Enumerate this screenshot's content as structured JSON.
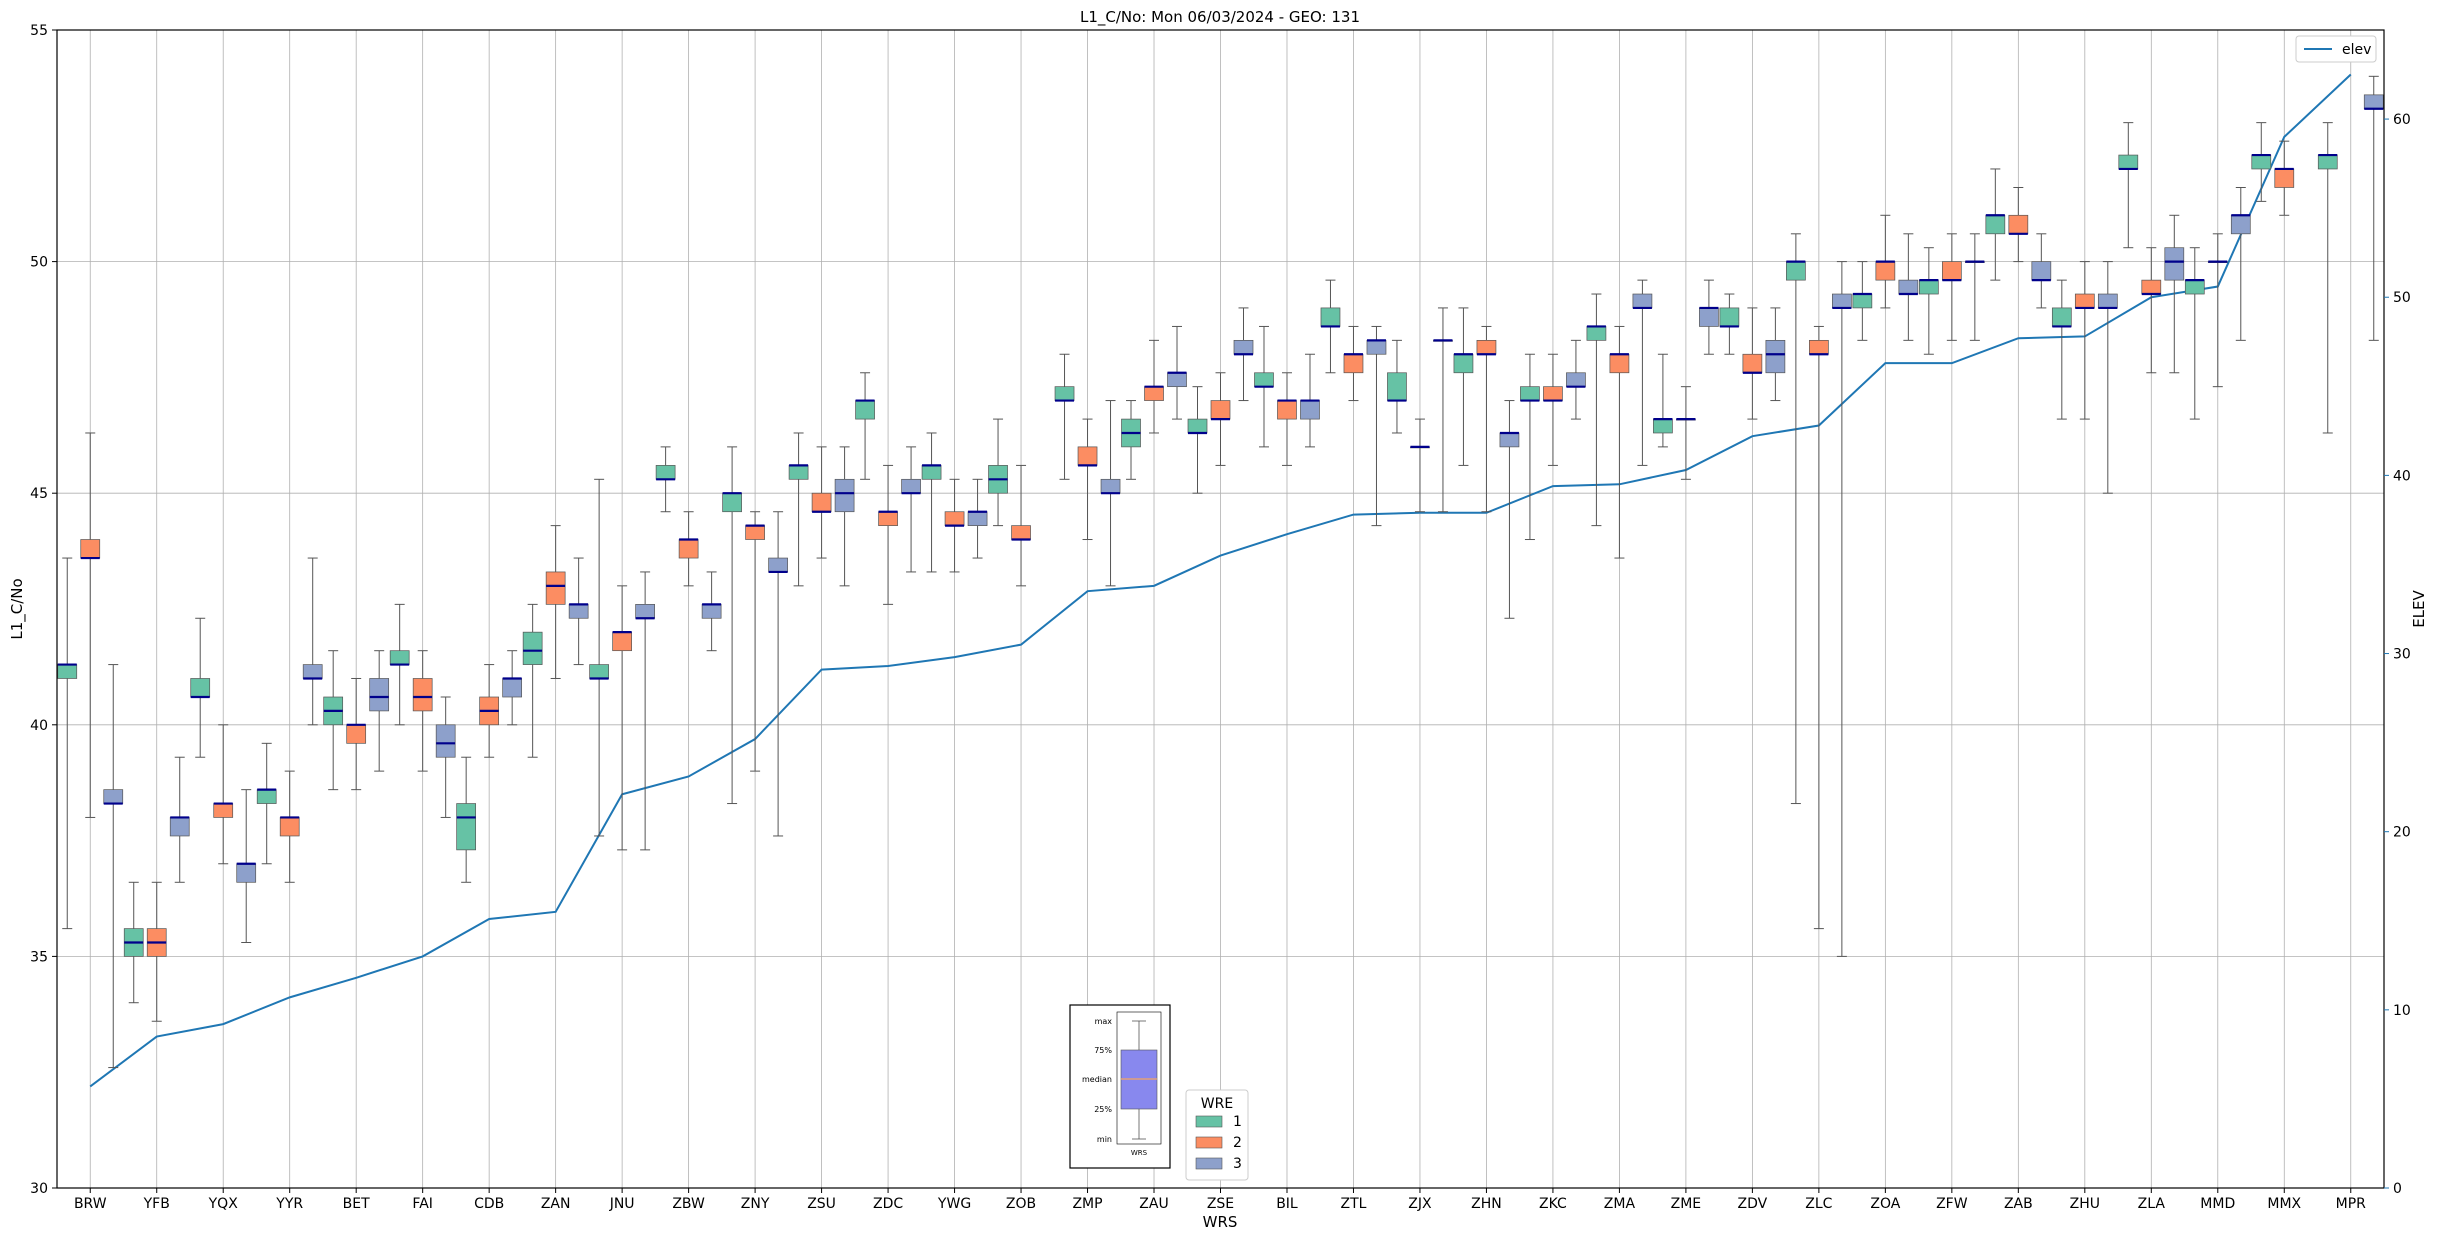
{
  "chart_data": {
    "type": "box",
    "title": "L1_C/No: Mon 06/03/2024 - GEO: 131",
    "xlabel": "WRS",
    "ylabel": "L1_C/No",
    "y2label": "ELEV",
    "ylim": [
      30,
      55
    ],
    "y2lim": [
      0,
      65
    ],
    "yticks": [
      30,
      35,
      40,
      45,
      50,
      55
    ],
    "y2ticks": [
      0,
      10,
      20,
      30,
      40,
      50,
      60
    ],
    "grid": true,
    "colors": {
      "1": "#66c2a5",
      "2": "#fc8d62",
      "3": "#8da0cb",
      "median": "#00008b",
      "elev": "#1f77b4",
      "whisker": "#555555"
    },
    "categories": [
      "BRW",
      "YFB",
      "YQX",
      "YYR",
      "BET",
      "FAI",
      "CDB",
      "ZAN",
      "JNU",
      "ZBW",
      "ZNY",
      "ZSU",
      "ZDC",
      "YWG",
      "ZOB",
      "ZMP",
      "ZAU",
      "ZSE",
      "BIL",
      "ZTL",
      "ZJX",
      "ZHN",
      "ZKC",
      "ZMA",
      "ZME",
      "ZDV",
      "ZLC",
      "ZOA",
      "ZFW",
      "ZAB",
      "ZHU",
      "ZLA",
      "MMD",
      "MMX",
      "MPR"
    ],
    "boxes": [
      {
        "cat": "BRW",
        "wre": "1",
        "min": 35.6,
        "q1": 41.0,
        "median": 41.3,
        "q3": 41.3,
        "max": 43.6
      },
      {
        "cat": "BRW",
        "wre": "2",
        "min": 38.0,
        "q1": 43.6,
        "median": 43.6,
        "q3": 44.0,
        "max": 46.3
      },
      {
        "cat": "BRW",
        "wre": "3",
        "min": 32.6,
        "q1": 38.3,
        "median": 38.3,
        "q3": 38.6,
        "max": 41.3
      },
      {
        "cat": "YFB",
        "wre": "1",
        "min": 34.0,
        "q1": 35.0,
        "median": 35.3,
        "q3": 35.6,
        "max": 36.6
      },
      {
        "cat": "YFB",
        "wre": "2",
        "min": 33.6,
        "q1": 35.0,
        "median": 35.3,
        "q3": 35.6,
        "max": 36.6
      },
      {
        "cat": "YFB",
        "wre": "3",
        "min": 36.6,
        "q1": 37.6,
        "median": 38.0,
        "q3": 38.0,
        "max": 39.3
      },
      {
        "cat": "YQX",
        "wre": "1",
        "min": 39.3,
        "q1": 40.6,
        "median": 40.6,
        "q3": 41.0,
        "max": 42.3
      },
      {
        "cat": "YQX",
        "wre": "2",
        "min": 37.0,
        "q1": 38.0,
        "median": 38.3,
        "q3": 38.3,
        "max": 40.0
      },
      {
        "cat": "YQX",
        "wre": "3",
        "min": 35.3,
        "q1": 36.6,
        "median": 37.0,
        "q3": 37.0,
        "max": 38.6
      },
      {
        "cat": "YYR",
        "wre": "1",
        "min": 37.0,
        "q1": 38.3,
        "median": 38.6,
        "q3": 38.6,
        "max": 39.6
      },
      {
        "cat": "YYR",
        "wre": "2",
        "min": 36.6,
        "q1": 37.6,
        "median": 38.0,
        "q3": 38.0,
        "max": 39.0
      },
      {
        "cat": "YYR",
        "wre": "3",
        "min": 40.0,
        "q1": 41.0,
        "median": 41.0,
        "q3": 41.3,
        "max": 43.6
      },
      {
        "cat": "BET",
        "wre": "1",
        "min": 38.6,
        "q1": 40.0,
        "median": 40.3,
        "q3": 40.6,
        "max": 41.6
      },
      {
        "cat": "BET",
        "wre": "2",
        "min": 38.6,
        "q1": 39.6,
        "median": 40.0,
        "q3": 40.0,
        "max": 41.0
      },
      {
        "cat": "BET",
        "wre": "3",
        "min": 39.0,
        "q1": 40.3,
        "median": 40.6,
        "q3": 41.0,
        "max": 41.6
      },
      {
        "cat": "FAI",
        "wre": "1",
        "min": 40.0,
        "q1": 41.3,
        "median": 41.3,
        "q3": 41.6,
        "max": 42.6
      },
      {
        "cat": "FAI",
        "wre": "2",
        "min": 39.0,
        "q1": 40.3,
        "median": 40.6,
        "q3": 41.0,
        "max": 41.6
      },
      {
        "cat": "FAI",
        "wre": "3",
        "min": 38.0,
        "q1": 39.3,
        "median": 39.6,
        "q3": 40.0,
        "max": 40.6
      },
      {
        "cat": "CDB",
        "wre": "1",
        "min": 36.6,
        "q1": 37.3,
        "median": 38.0,
        "q3": 38.3,
        "max": 39.3
      },
      {
        "cat": "CDB",
        "wre": "2",
        "min": 39.3,
        "q1": 40.0,
        "median": 40.3,
        "q3": 40.6,
        "max": 41.3
      },
      {
        "cat": "CDB",
        "wre": "3",
        "min": 40.0,
        "q1": 40.6,
        "median": 41.0,
        "q3": 41.0,
        "max": 41.6
      },
      {
        "cat": "ZAN",
        "wre": "1",
        "min": 39.3,
        "q1": 41.3,
        "median": 41.6,
        "q3": 42.0,
        "max": 42.6
      },
      {
        "cat": "ZAN",
        "wre": "2",
        "min": 41.0,
        "q1": 42.6,
        "median": 43.0,
        "q3": 43.3,
        "max": 44.3
      },
      {
        "cat": "ZAN",
        "wre": "3",
        "min": 41.3,
        "q1": 42.3,
        "median": 42.6,
        "q3": 42.6,
        "max": 43.6
      },
      {
        "cat": "JNU",
        "wre": "1",
        "min": 37.6,
        "q1": 41.0,
        "median": 41.0,
        "q3": 41.3,
        "max": 45.3
      },
      {
        "cat": "JNU",
        "wre": "2",
        "min": 37.3,
        "q1": 41.6,
        "median": 42.0,
        "q3": 42.0,
        "max": 43.0
      },
      {
        "cat": "JNU",
        "wre": "3",
        "min": 37.3,
        "q1": 42.3,
        "median": 42.3,
        "q3": 42.6,
        "max": 43.3
      },
      {
        "cat": "ZBW",
        "wre": "1",
        "min": 44.6,
        "q1": 45.3,
        "median": 45.3,
        "q3": 45.6,
        "max": 46.0
      },
      {
        "cat": "ZBW",
        "wre": "2",
        "min": 43.0,
        "q1": 43.6,
        "median": 44.0,
        "q3": 44.0,
        "max": 44.6
      },
      {
        "cat": "ZBW",
        "wre": "3",
        "min": 41.6,
        "q1": 42.3,
        "median": 42.6,
        "q3": 42.6,
        "max": 43.3
      },
      {
        "cat": "ZNY",
        "wre": "1",
        "min": 38.3,
        "q1": 44.6,
        "median": 45.0,
        "q3": 45.0,
        "max": 46.0
      },
      {
        "cat": "ZNY",
        "wre": "2",
        "min": 39.0,
        "q1": 44.0,
        "median": 44.3,
        "q3": 44.3,
        "max": 44.6
      },
      {
        "cat": "ZNY",
        "wre": "3",
        "min": 37.6,
        "q1": 43.3,
        "median": 43.3,
        "q3": 43.6,
        "max": 44.6
      },
      {
        "cat": "ZSU",
        "wre": "1",
        "min": 43.0,
        "q1": 45.3,
        "median": 45.6,
        "q3": 45.6,
        "max": 46.3
      },
      {
        "cat": "ZSU",
        "wre": "2",
        "min": 43.6,
        "q1": 44.6,
        "median": 44.6,
        "q3": 45.0,
        "max": 46.0
      },
      {
        "cat": "ZSU",
        "wre": "3",
        "min": 43.0,
        "q1": 44.6,
        "median": 45.0,
        "q3": 45.3,
        "max": 46.0
      },
      {
        "cat": "ZDC",
        "wre": "1",
        "min": 45.3,
        "q1": 46.6,
        "median": 47.0,
        "q3": 47.0,
        "max": 47.6
      },
      {
        "cat": "ZDC",
        "wre": "2",
        "min": 42.6,
        "q1": 44.3,
        "median": 44.6,
        "q3": 44.6,
        "max": 45.6
      },
      {
        "cat": "ZDC",
        "wre": "3",
        "min": 43.3,
        "q1": 45.0,
        "median": 45.0,
        "q3": 45.3,
        "max": 46.0
      },
      {
        "cat": "YWG",
        "wre": "1",
        "min": 43.3,
        "q1": 45.3,
        "median": 45.6,
        "q3": 45.6,
        "max": 46.3
      },
      {
        "cat": "YWG",
        "wre": "2",
        "min": 43.3,
        "q1": 44.3,
        "median": 44.3,
        "q3": 44.6,
        "max": 45.3
      },
      {
        "cat": "YWG",
        "wre": "3",
        "min": 43.6,
        "q1": 44.3,
        "median": 44.6,
        "q3": 44.6,
        "max": 45.3
      },
      {
        "cat": "ZOB",
        "wre": "1",
        "min": 44.3,
        "q1": 45.0,
        "median": 45.3,
        "q3": 45.6,
        "max": 46.6
      },
      {
        "cat": "ZOB",
        "wre": "2",
        "min": 43.0,
        "q1": 44.0,
        "median": 44.0,
        "q3": 44.3,
        "max": 45.6
      },
      {
        "cat": "ZMP",
        "wre": "1",
        "min": 45.3,
        "q1": 47.0,
        "median": 47.0,
        "q3": 47.3,
        "max": 48.0
      },
      {
        "cat": "ZMP",
        "wre": "2",
        "min": 44.0,
        "q1": 45.6,
        "median": 45.6,
        "q3": 46.0,
        "max": 46.6
      },
      {
        "cat": "ZMP",
        "wre": "3",
        "min": 43.0,
        "q1": 45.0,
        "median": 45.0,
        "q3": 45.3,
        "max": 47.0
      },
      {
        "cat": "ZAU",
        "wre": "1",
        "min": 45.3,
        "q1": 46.0,
        "median": 46.3,
        "q3": 46.6,
        "max": 47.0
      },
      {
        "cat": "ZAU",
        "wre": "2",
        "min": 46.3,
        "q1": 47.0,
        "median": 47.3,
        "q3": 47.3,
        "max": 48.3
      },
      {
        "cat": "ZAU",
        "wre": "3",
        "min": 46.6,
        "q1": 47.3,
        "median": 47.6,
        "q3": 47.6,
        "max": 48.6
      },
      {
        "cat": "ZSE",
        "wre": "1",
        "min": 45.0,
        "q1": 46.3,
        "median": 46.3,
        "q3": 46.6,
        "max": 47.3
      },
      {
        "cat": "ZSE",
        "wre": "2",
        "min": 45.6,
        "q1": 46.6,
        "median": 46.6,
        "q3": 47.0,
        "max": 47.6
      },
      {
        "cat": "ZSE",
        "wre": "3",
        "min": 47.0,
        "q1": 48.0,
        "median": 48.0,
        "q3": 48.3,
        "max": 49.0
      },
      {
        "cat": "BIL",
        "wre": "1",
        "min": 46.0,
        "q1": 47.3,
        "median": 47.3,
        "q3": 47.6,
        "max": 48.6
      },
      {
        "cat": "BIL",
        "wre": "2",
        "min": 45.6,
        "q1": 46.6,
        "median": 47.0,
        "q3": 47.0,
        "max": 47.6
      },
      {
        "cat": "BIL",
        "wre": "3",
        "min": 46.0,
        "q1": 46.6,
        "median": 47.0,
        "q3": 47.0,
        "max": 48.0
      },
      {
        "cat": "ZTL",
        "wre": "1",
        "min": 47.6,
        "q1": 48.6,
        "median": 48.6,
        "q3": 49.0,
        "max": 49.6
      },
      {
        "cat": "ZTL",
        "wre": "2",
        "min": 47.0,
        "q1": 47.6,
        "median": 48.0,
        "q3": 48.0,
        "max": 48.6
      },
      {
        "cat": "ZTL",
        "wre": "3",
        "min": 44.3,
        "q1": 48.0,
        "median": 48.3,
        "q3": 48.3,
        "max": 48.6
      },
      {
        "cat": "ZJX",
        "wre": "1",
        "min": 46.3,
        "q1": 47.0,
        "median": 47.0,
        "q3": 47.6,
        "max": 48.3
      },
      {
        "cat": "ZJX",
        "wre": "2",
        "min": 44.6,
        "q1": 46.0,
        "median": 46.0,
        "q3": 46.0,
        "max": 46.6
      },
      {
        "cat": "ZJX",
        "wre": "3",
        "min": 44.6,
        "q1": 48.3,
        "median": 48.3,
        "q3": 48.3,
        "max": 49.0
      },
      {
        "cat": "ZHN",
        "wre": "1",
        "min": 45.6,
        "q1": 47.6,
        "median": 48.0,
        "q3": 48.0,
        "max": 49.0
      },
      {
        "cat": "ZHN",
        "wre": "2",
        "min": 44.6,
        "q1": 48.0,
        "median": 48.0,
        "q3": 48.3,
        "max": 48.6
      },
      {
        "cat": "ZHN",
        "wre": "3",
        "min": 42.3,
        "q1": 46.0,
        "median": 46.3,
        "q3": 46.3,
        "max": 47.0
      },
      {
        "cat": "ZKC",
        "wre": "1",
        "min": 44.0,
        "q1": 47.0,
        "median": 47.0,
        "q3": 47.3,
        "max": 48.0
      },
      {
        "cat": "ZKC",
        "wre": "2",
        "min": 45.6,
        "q1": 47.0,
        "median": 47.0,
        "q3": 47.3,
        "max": 48.0
      },
      {
        "cat": "ZKC",
        "wre": "3",
        "min": 46.6,
        "q1": 47.3,
        "median": 47.3,
        "q3": 47.6,
        "max": 48.3
      },
      {
        "cat": "ZMA",
        "wre": "1",
        "min": 44.3,
        "q1": 48.3,
        "median": 48.6,
        "q3": 48.6,
        "max": 49.3
      },
      {
        "cat": "ZMA",
        "wre": "2",
        "min": 43.6,
        "q1": 47.6,
        "median": 48.0,
        "q3": 48.0,
        "max": 48.6
      },
      {
        "cat": "ZMA",
        "wre": "3",
        "min": 45.6,
        "q1": 49.0,
        "median": 49.0,
        "q3": 49.3,
        "max": 49.6
      },
      {
        "cat": "ZME",
        "wre": "1",
        "min": 46.0,
        "q1": 46.3,
        "median": 46.6,
        "q3": 46.6,
        "max": 48.0
      },
      {
        "cat": "ZME",
        "wre": "2",
        "min": 45.3,
        "q1": 46.6,
        "median": 46.6,
        "q3": 46.6,
        "max": 47.3
      },
      {
        "cat": "ZME",
        "wre": "3",
        "min": 48.0,
        "q1": 48.6,
        "median": 49.0,
        "q3": 49.0,
        "max": 49.6
      },
      {
        "cat": "ZDV",
        "wre": "1",
        "min": 48.0,
        "q1": 48.6,
        "median": 48.6,
        "q3": 49.0,
        "max": 49.3
      },
      {
        "cat": "ZDV",
        "wre": "2",
        "min": 46.6,
        "q1": 47.6,
        "median": 47.6,
        "q3": 48.0,
        "max": 49.0
      },
      {
        "cat": "ZDV",
        "wre": "3",
        "min": 47.0,
        "q1": 47.6,
        "median": 48.0,
        "q3": 48.3,
        "max": 49.0
      },
      {
        "cat": "ZLC",
        "wre": "1",
        "min": 38.3,
        "q1": 49.6,
        "median": 50.0,
        "q3": 50.0,
        "max": 50.6
      },
      {
        "cat": "ZLC",
        "wre": "2",
        "min": 35.6,
        "q1": 48.0,
        "median": 48.0,
        "q3": 48.3,
        "max": 48.6
      },
      {
        "cat": "ZLC",
        "wre": "3",
        "min": 35.0,
        "q1": 49.0,
        "median": 49.0,
        "q3": 49.3,
        "max": 50.0
      },
      {
        "cat": "ZOA",
        "wre": "1",
        "min": 48.3,
        "q1": 49.0,
        "median": 49.3,
        "q3": 49.3,
        "max": 50.0
      },
      {
        "cat": "ZOA",
        "wre": "2",
        "min": 49.0,
        "q1": 49.6,
        "median": 50.0,
        "q3": 50.0,
        "max": 51.0
      },
      {
        "cat": "ZOA",
        "wre": "3",
        "min": 48.3,
        "q1": 49.3,
        "median": 49.3,
        "q3": 49.6,
        "max": 50.6
      },
      {
        "cat": "ZFW",
        "wre": "1",
        "min": 48.0,
        "q1": 49.3,
        "median": 49.6,
        "q3": 49.6,
        "max": 50.3
      },
      {
        "cat": "ZFW",
        "wre": "2",
        "min": 48.3,
        "q1": 49.6,
        "median": 49.6,
        "q3": 50.0,
        "max": 50.6
      },
      {
        "cat": "ZFW",
        "wre": "3",
        "min": 48.3,
        "q1": 50.0,
        "median": 50.0,
        "q3": 50.0,
        "max": 50.6
      },
      {
        "cat": "ZAB",
        "wre": "1",
        "min": 49.6,
        "q1": 50.6,
        "median": 51.0,
        "q3": 51.0,
        "max": 52.0
      },
      {
        "cat": "ZAB",
        "wre": "2",
        "min": 50.0,
        "q1": 50.6,
        "median": 50.6,
        "q3": 51.0,
        "max": 51.6
      },
      {
        "cat": "ZAB",
        "wre": "3",
        "min": 49.0,
        "q1": 49.6,
        "median": 49.6,
        "q3": 50.0,
        "max": 50.6
      },
      {
        "cat": "ZHU",
        "wre": "1",
        "min": 46.6,
        "q1": 48.6,
        "median": 48.6,
        "q3": 49.0,
        "max": 49.6
      },
      {
        "cat": "ZHU",
        "wre": "2",
        "min": 46.6,
        "q1": 49.0,
        "median": 49.0,
        "q3": 49.3,
        "max": 50.0
      },
      {
        "cat": "ZHU",
        "wre": "3",
        "min": 45.0,
        "q1": 49.0,
        "median": 49.0,
        "q3": 49.3,
        "max": 50.0
      },
      {
        "cat": "ZLA",
        "wre": "1",
        "min": 50.3,
        "q1": 52.0,
        "median": 52.0,
        "q3": 52.3,
        "max": 53.0
      },
      {
        "cat": "ZLA",
        "wre": "2",
        "min": 47.6,
        "q1": 49.3,
        "median": 49.3,
        "q3": 49.6,
        "max": 50.3
      },
      {
        "cat": "ZLA",
        "wre": "3",
        "min": 47.6,
        "q1": 49.6,
        "median": 50.0,
        "q3": 50.3,
        "max": 51.0
      },
      {
        "cat": "MMD",
        "wre": "1",
        "min": 46.6,
        "q1": 49.3,
        "median": 49.6,
        "q3": 49.6,
        "max": 50.3
      },
      {
        "cat": "MMD",
        "wre": "2",
        "min": 47.3,
        "q1": 50.0,
        "median": 50.0,
        "q3": 50.0,
        "max": 50.6
      },
      {
        "cat": "MMD",
        "wre": "3",
        "min": 48.3,
        "q1": 50.6,
        "median": 51.0,
        "q3": 51.0,
        "max": 51.6
      },
      {
        "cat": "MMX",
        "wre": "1",
        "min": 51.3,
        "q1": 52.0,
        "median": 52.3,
        "q3": 52.3,
        "max": 53.0
      },
      {
        "cat": "MMX",
        "wre": "2",
        "min": 51.0,
        "q1": 51.6,
        "median": 52.0,
        "q3": 52.0,
        "max": 52.6
      },
      {
        "cat": "MPR",
        "wre": "1",
        "min": 46.3,
        "q1": 52.0,
        "median": 52.3,
        "q3": 52.3,
        "max": 53.0
      },
      {
        "cat": "MPR",
        "wre": "3",
        "min": 48.3,
        "q1": 53.3,
        "median": 53.3,
        "q3": 53.6,
        "max": 54.0
      }
    ],
    "elev_series": {
      "name": "elev",
      "values": [
        5.7,
        8.5,
        9.2,
        10.7,
        11.8,
        13.0,
        15.1,
        15.5,
        22.1,
        23.1,
        25.2,
        29.1,
        29.3,
        29.8,
        30.5,
        33.5,
        33.8,
        35.5,
        36.7,
        37.8,
        37.9,
        37.9,
        39.4,
        39.5,
        40.3,
        42.2,
        42.8,
        46.3,
        46.3,
        47.7,
        47.8,
        50.0,
        50.6,
        59.0,
        62.5
      ]
    },
    "legend": {
      "title": "WRE",
      "entries": [
        "1",
        "2",
        "3"
      ],
      "placement": "bottom-center"
    },
    "line_legend": {
      "entries": [
        "elev"
      ],
      "placement": "top-right"
    },
    "inset_key": {
      "labels": [
        "max",
        "75%",
        "median",
        "25%",
        "min"
      ],
      "xlabel": "WRS",
      "box_color": "#8888ee",
      "median_color": "#f4a460"
    }
  }
}
